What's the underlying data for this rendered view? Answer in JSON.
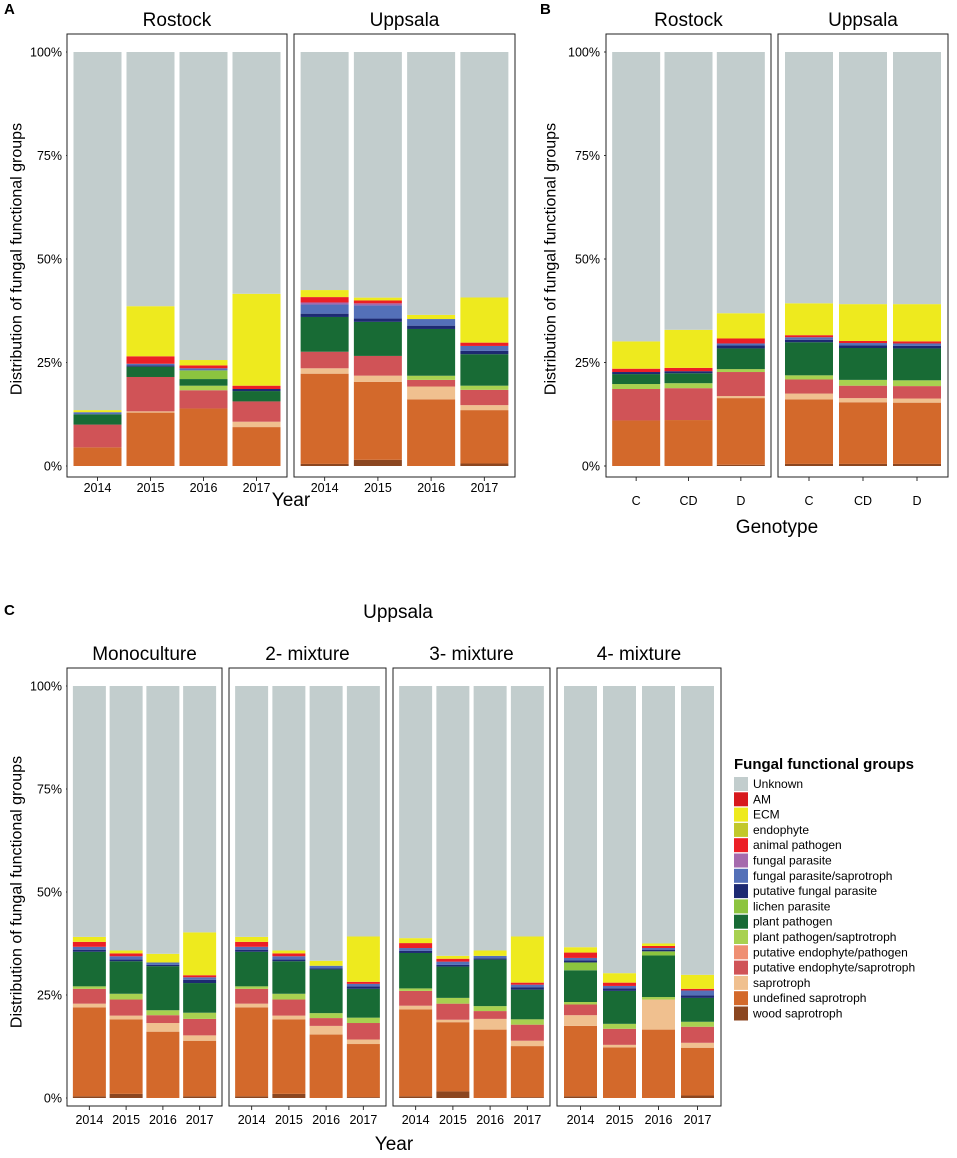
{
  "colors": {
    "Unknown": "#c2cdcd",
    "AM": "#d7191c",
    "ECM": "#eeea1e",
    "endophyte": "#c2c82a",
    "animal pathogen": "#ec1f26",
    "fungal parasite": "#a56aad",
    "fungal parasite/saprotroph": "#5470b8",
    "putative fungal parasite": "#1d2a72",
    "lichen parasite": "#8cc43f",
    "plant pathogen": "#186b35",
    "plant pathogen/saptrotroph": "#a8d150",
    "putative endophyte/pathogen": "#ef8f72",
    "putative endophyte/saprotroph": "#d05357",
    "saprotroph": "#f0c08f",
    "undefined saprotroph": "#d3692b",
    "wood saprotroph": "#8b4620"
  },
  "legend": {
    "title": "Fungal functional groups",
    "items": [
      "Unknown",
      "AM",
      "ECM",
      "endophyte",
      "animal pathogen",
      "fungal parasite",
      "fungal parasite/saprotroph",
      "putative fungal parasite",
      "lichen parasite",
      "plant pathogen",
      "plant pathogen/saptrotroph",
      "putative endophyte/pathogen",
      "putative endophyte/saprotroph",
      "saprotroph",
      "undefined saprotroph",
      "wood saprotroph"
    ]
  },
  "chart_data": [
    {
      "panel_label": "A",
      "type": "bar",
      "stacked": true,
      "ylabel": "Distribution of fungal functional groups",
      "xlabel": "Year",
      "ylim": [
        0,
        100
      ],
      "yticks": [
        "0%",
        "25%",
        "50%",
        "75%",
        "100%"
      ],
      "facets": [
        {
          "title": "Rostock",
          "categories": [
            "2014",
            "2015",
            "2016",
            "2017"
          ],
          "stacks": [
            {
              "undefined saprotroph": 4.5,
              "putative endophyte/saprotroph": 5.5,
              "plant pathogen": 2.5,
              "fungal parasite/saprotroph": 0.5,
              "ECM": 0.5,
              "Unknown": 86.5
            },
            {
              "undefined saprotroph": 12.9,
              "putative endophyte/saprotroph": 8.3,
              "saprotroph": 0.3,
              "plant pathogen": 2.5,
              "putative fungal parasite": 0.3,
              "fungal parasite/saprotroph": 0.4,
              "animal pathogen": 1.8,
              "ECM": 12.1,
              "Unknown": 61.4
            },
            {
              "undefined saprotroph": 13.9,
              "putative endophyte/saprotroph": 4.4,
              "plant pathogen": 1.6,
              "lichen parasite": 2.1,
              "plant pathogen/saptrotroph": 1.1,
              "fungal parasite/saprotroph": 0.5,
              "animal pathogen": 0.7,
              "ECM": 1.3,
              "Unknown": 74.4
            },
            {
              "undefined saprotroph": 9.4,
              "saprotroph": 1.3,
              "putative endophyte/saprotroph": 4.9,
              "plant pathogen": 2.5,
              "putative fungal parasite": 0.5,
              "animal pathogen": 0.8,
              "ECM": 22.2,
              "Unknown": 58.4
            }
          ]
        },
        {
          "title": "Uppsala",
          "categories": [
            "2014",
            "2015",
            "2016",
            "2017"
          ],
          "stacks": [
            {
              "wood saprotroph": 0.5,
              "undefined saprotroph": 21.8,
              "saprotroph": 1.3,
              "putative endophyte/saprotroph": 4.0,
              "plant pathogen": 8.4,
              "putative fungal parasite": 0.8,
              "fungal parasite/saprotroph": 2.2,
              "fungal parasite": 0.5,
              "animal pathogen": 1.3,
              "ECM": 1.7,
              "Unknown": 57.5
            },
            {
              "wood saprotroph": 1.5,
              "undefined saprotroph": 19.0,
              "saprotroph": 1.5,
              "putative endophyte/saprotroph": 4.8,
              "plant pathogen": 8.3,
              "putative fungal parasite": 0.8,
              "fungal parasite/saprotroph": 3.2,
              "fungal parasite": 0.5,
              "animal pathogen": 0.7,
              "ECM": 0.7,
              "Unknown": 59.8
            },
            {
              "undefined saprotroph": 16.1,
              "saprotroph": 3.1,
              "putative endophyte/saprotroph": 1.6,
              "plant pathogen/saptrotroph": 1.0,
              "plant pathogen": 11.3,
              "putative fungal parasite": 0.8,
              "fungal parasite/saprotroph": 1.6,
              "ECM": 1.0,
              "Unknown": 63.5
            },
            {
              "wood saprotroph": 0.6,
              "undefined saprotroph": 12.9,
              "saprotroph": 1.2,
              "putative endophyte/saprotroph": 3.7,
              "plant pathogen/saptrotroph": 1.0,
              "plant pathogen": 7.6,
              "putative fungal parasite": 0.8,
              "fungal parasite/saprotroph": 1.2,
              "animal pathogen": 0.8,
              "ECM": 10.9,
              "Unknown": 59.3
            }
          ]
        }
      ]
    },
    {
      "panel_label": "B",
      "type": "bar",
      "stacked": true,
      "ylabel": "Distribution of fungal functional groups",
      "xlabel": "Genotype",
      "ylim": [
        0,
        100
      ],
      "yticks": [
        "0%",
        "25%",
        "50%",
        "75%",
        "100%"
      ],
      "facets": [
        {
          "title": "Rostock",
          "categories": [
            "C",
            "CD",
            "D"
          ],
          "stacks": [
            {
              "undefined saprotroph": 11.0,
              "putative endophyte/saprotroph": 7.6,
              "plant pathogen": 2.4,
              "plant pathogen/saptrotroph": 1.2,
              "putative fungal parasite": 0.5,
              "animal pathogen": 0.8,
              "ECM": 6.6,
              "Unknown": 69.9
            },
            {
              "undefined saprotroph": 11.1,
              "putative endophyte/saprotroph": 7.7,
              "plant pathogen": 2.4,
              "plant pathogen/saptrotroph": 1.2,
              "putative fungal parasite": 0.5,
              "animal pathogen": 0.8,
              "ECM": 9.2,
              "Unknown": 67.1
            },
            {
              "wood saprotroph": 0.3,
              "undefined saprotroph": 16.1,
              "saprotroph": 0.5,
              "putative endophyte/saprotroph": 5.8,
              "plant pathogen": 5.0,
              "plant pathogen/saptrotroph": 0.7,
              "putative fungal parasite": 0.7,
              "fungal parasite/saprotroph": 0.5,
              "animal pathogen": 1.2,
              "ECM": 6.1,
              "Unknown": 63.1
            }
          ]
        },
        {
          "title": "Uppsala",
          "categories": [
            "C",
            "CD",
            "D"
          ],
          "stacks": [
            {
              "wood saprotroph": 0.5,
              "undefined saprotroph": 15.6,
              "saprotroph": 1.4,
              "putative endophyte/saprotroph": 3.4,
              "plant pathogen/saptrotroph": 1.0,
              "plant pathogen": 8.0,
              "putative fungal parasite": 0.6,
              "fungal parasite/saprotroph": 0.6,
              "animal pathogen": 0.5,
              "ECM": 7.7,
              "Unknown": 60.7
            },
            {
              "wood saprotroph": 0.5,
              "undefined saprotroph": 14.9,
              "saprotroph": 1.0,
              "putative endophyte/saprotroph": 3.0,
              "plant pathogen/saptrotroph": 1.4,
              "plant pathogen": 7.7,
              "putative fungal parasite": 0.6,
              "fungal parasite/saprotroph": 0.6,
              "animal pathogen": 0.5,
              "ECM": 8.9,
              "Unknown": 60.9
            },
            {
              "wood saprotroph": 0.5,
              "undefined saprotroph": 14.8,
              "saprotroph": 1.0,
              "putative endophyte/saprotroph": 3.0,
              "plant pathogen/saptrotroph": 1.4,
              "plant pathogen": 7.7,
              "putative fungal parasite": 0.6,
              "fungal parasite/saprotroph": 0.6,
              "animal pathogen": 0.5,
              "ECM": 9.0,
              "Unknown": 60.9
            }
          ]
        }
      ]
    },
    {
      "panel_label": "C",
      "type": "bar",
      "stacked": true,
      "title": "Uppsala",
      "ylabel": "Distribution of fungal functional groups",
      "xlabel": "Year",
      "ylim": [
        0,
        100
      ],
      "yticks": [
        "0%",
        "25%",
        "50%",
        "75%",
        "100%"
      ],
      "facets": [
        {
          "title": "Monoculture",
          "categories": [
            "2014",
            "2015",
            "2016",
            "2017"
          ],
          "stacks": [
            {
              "wood saprotroph": 0.4,
              "undefined saprotroph": 21.6,
              "saprotroph": 0.9,
              "putative endophyte/saprotroph": 3.6,
              "plant pathogen": 8.4,
              "plant pathogen/saptrotroph": 0.6,
              "putative fungal parasite": 0.5,
              "fungal parasite/saprotroph": 0.7,
              "animal pathogen": 1.2,
              "ECM": 1.2,
              "Unknown": 60.9
            },
            {
              "wood saprotroph": 1.0,
              "undefined saprotroph": 18.1,
              "saprotroph": 0.9,
              "putative endophyte/saprotroph": 3.9,
              "plant pathogen/saptrotroph": 1.4,
              "plant pathogen": 7.9,
              "putative fungal parasite": 0.4,
              "fungal parasite/saprotroph": 0.8,
              "animal pathogen": 0.7,
              "ECM": 0.7,
              "Unknown": 64.2
            },
            {
              "undefined saprotroph": 16.1,
              "saprotroph": 2.1,
              "putative endophyte/saprotroph": 1.9,
              "plant pathogen/saptrotroph": 1.2,
              "plant pathogen": 10.7,
              "putative fungal parasite": 0.3,
              "fungal parasite/saprotroph": 0.6,
              "ECM": 2.1,
              "Unknown": 65.0
            },
            {
              "wood saprotroph": 0.4,
              "undefined saprotroph": 13.5,
              "saprotroph": 1.3,
              "putative endophyte/saprotroph": 4.0,
              "plant pathogen/saptrotroph": 1.5,
              "plant pathogen": 7.2,
              "putative fungal parasite": 0.8,
              "fungal parasite/saprotroph": 0.6,
              "animal pathogen": 0.5,
              "ECM": 10.4,
              "Unknown": 59.8
            }
          ]
        },
        {
          "title": "2- mixture",
          "categories": [
            "2014",
            "2015",
            "2016",
            "2017"
          ],
          "stacks": [
            {
              "wood saprotroph": 0.4,
              "undefined saprotroph": 21.6,
              "saprotroph": 0.9,
              "putative endophyte/saprotroph": 3.6,
              "plant pathogen": 8.4,
              "plant pathogen/saptrotroph": 0.6,
              "putative fungal parasite": 0.5,
              "fungal parasite/saprotroph": 0.7,
              "animal pathogen": 1.2,
              "ECM": 1.2,
              "Unknown": 60.9
            },
            {
              "wood saprotroph": 1.0,
              "undefined saprotroph": 18.1,
              "saprotroph": 0.9,
              "putative endophyte/saprotroph": 3.9,
              "plant pathogen/saptrotroph": 1.4,
              "plant pathogen": 7.9,
              "putative fungal parasite": 0.4,
              "fungal parasite/saprotroph": 0.8,
              "animal pathogen": 0.7,
              "ECM": 0.7,
              "Unknown": 64.2
            },
            {
              "undefined saprotroph": 15.4,
              "saprotroph": 2.1,
              "putative endophyte/saprotroph": 1.9,
              "plant pathogen/saptrotroph": 1.2,
              "plant pathogen": 10.6,
              "putative fungal parasite": 0.3,
              "fungal parasite/saprotroph": 0.6,
              "ECM": 1.2,
              "Unknown": 66.7
            },
            {
              "wood saprotroph": 0.2,
              "undefined saprotroph": 12.9,
              "saprotroph": 1.1,
              "putative endophyte/saprotroph": 4.0,
              "plant pathogen/saptrotroph": 1.3,
              "plant pathogen": 7.0,
              "putative fungal parasite": 0.6,
              "fungal parasite/saprotroph": 0.6,
              "animal pathogen": 0.5,
              "ECM": 11.0,
              "Unknown": 60.8
            }
          ]
        },
        {
          "title": "3- mixture",
          "categories": [
            "2014",
            "2015",
            "2016",
            "2017"
          ],
          "stacks": [
            {
              "wood saprotroph": 0.4,
              "undefined saprotroph": 21.1,
              "saprotroph": 0.9,
              "putative endophyte/saprotroph": 3.6,
              "plant pathogen": 8.6,
              "plant pathogen/saptrotroph": 0.6,
              "putative fungal parasite": 0.5,
              "fungal parasite/saprotroph": 0.7,
              "animal pathogen": 1.2,
              "ECM": 1.2,
              "Unknown": 61.2
            },
            {
              "wood saprotroph": 1.6,
              "undefined saprotroph": 16.8,
              "saprotroph": 0.6,
              "putative endophyte/saprotroph": 3.9,
              "plant pathogen/saptrotroph": 1.4,
              "plant pathogen": 7.6,
              "putative fungal parasite": 0.4,
              "fungal parasite/saprotroph": 0.8,
              "animal pathogen": 0.7,
              "ECM": 0.7,
              "Unknown": 65.5
            },
            {
              "undefined saprotroph": 16.6,
              "saprotroph": 2.6,
              "putative endophyte/saprotroph": 1.9,
              "plant pathogen/saptrotroph": 1.2,
              "plant pathogen": 11.3,
              "putative fungal parasite": 0.3,
              "fungal parasite/saprotroph": 0.6,
              "ECM": 1.3,
              "Unknown": 64.2
            },
            {
              "wood saprotroph": 0.2,
              "undefined saprotroph": 12.4,
              "saprotroph": 1.3,
              "putative endophyte/saprotroph": 3.9,
              "plant pathogen/saptrotroph": 1.3,
              "plant pathogen": 7.2,
              "putative fungal parasite": 0.6,
              "fungal parasite/saprotroph": 0.6,
              "animal pathogen": 0.5,
              "ECM": 11.2,
              "Unknown": 60.8
            }
          ]
        },
        {
          "title": "4- mixture",
          "categories": [
            "2014",
            "2015",
            "2016",
            "2017"
          ],
          "stacks": [
            {
              "wood saprotroph": 0.4,
              "undefined saprotroph": 17.1,
              "saprotroph": 2.6,
              "putative endophyte/saprotroph": 2.6,
              "plant pathogen/saptrotroph": 0.6,
              "lichen parasite": 1.9,
              "plant pathogen": 7.7,
              "putative fungal parasite": 0.5,
              "fungal parasite/saprotroph": 0.6,
              "animal pathogen": 1.3,
              "ECM": 1.3,
              "Unknown": 63.4
            },
            {
              "undefined saprotroph": 12.3,
              "saprotroph": 0.6,
              "putative endophyte/saprotroph": 3.9,
              "plant pathogen/saptrotroph": 1.2,
              "plant pathogen": 8.0,
              "putative fungal parasite": 0.6,
              "fungal parasite/saprotroph": 0.6,
              "animal pathogen": 0.8,
              "ECM": 2.3,
              "Unknown": 69.7
            },
            {
              "undefined saprotroph": 16.6,
              "saprotroph": 7.3,
              "plant pathogen/saptrotroph": 0.6,
              "lichen parasite": 1.0,
              "plant pathogen": 10.1,
              "putative fungal parasite": 0.4,
              "fungal parasite/saprotroph": 0.4,
              "animal pathogen": 0.5,
              "ECM": 0.6,
              "Unknown": 62.5
            },
            {
              "wood saprotroph": 0.6,
              "undefined saprotroph": 11.6,
              "saprotroph": 1.2,
              "putative endophyte/saprotroph": 3.9,
              "plant pathogen/saptrotroph": 1.2,
              "plant pathogen": 5.8,
              "putative fungal parasite": 0.6,
              "fungal parasite/saprotroph": 1.2,
              "animal pathogen": 0.4,
              "ECM": 3.4,
              "Unknown": 70.1
            }
          ]
        }
      ]
    }
  ]
}
